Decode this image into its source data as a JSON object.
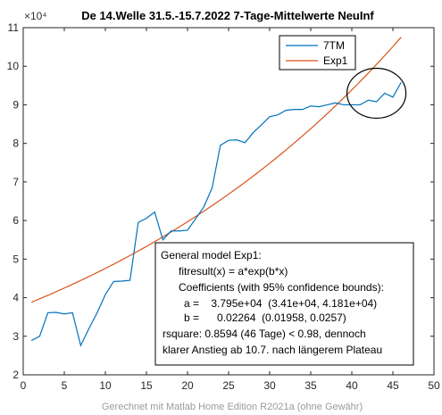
{
  "chart_data": {
    "type": "line",
    "title": "De 14.Welle 31.5.-15.7.2022 7-Tage-Mittelwerte NeuInf",
    "xlabel": "",
    "ylabel": "",
    "y_exponent_label": "×10⁴",
    "xlim": [
      0,
      50
    ],
    "ylim": [
      2,
      11
    ],
    "x_ticks": [
      0,
      5,
      10,
      15,
      20,
      25,
      30,
      35,
      40,
      45,
      50
    ],
    "y_ticks": [
      2,
      3,
      4,
      5,
      6,
      7,
      8,
      9,
      10,
      11
    ],
    "grid": false,
    "legend_position": "top-right",
    "series": [
      {
        "name": "7TM",
        "color": "#0072BD",
        "x": [
          1,
          2,
          3,
          4,
          5,
          6,
          7,
          8,
          9,
          10,
          11,
          12,
          13,
          14,
          15,
          16,
          17,
          18,
          19,
          20,
          21,
          22,
          23,
          24,
          25,
          26,
          27,
          28,
          29,
          30,
          31,
          32,
          33,
          34,
          35,
          36,
          37,
          38,
          39,
          40,
          41,
          42,
          43,
          44,
          45,
          46
        ],
        "y": [
          2.89,
          3.0,
          3.61,
          3.62,
          3.58,
          3.61,
          2.76,
          3.2,
          3.61,
          4.08,
          4.42,
          4.43,
          4.45,
          5.95,
          6.06,
          6.22,
          5.5,
          5.73,
          5.73,
          5.75,
          6.05,
          6.36,
          6.85,
          7.95,
          8.08,
          8.09,
          8.02,
          8.28,
          8.48,
          8.69,
          8.74,
          8.86,
          8.88,
          8.88,
          8.97,
          8.95,
          9.0,
          9.05,
          9.0,
          9.0,
          9.0,
          9.12,
          9.08,
          9.3,
          9.2,
          9.58
        ]
      },
      {
        "name": "Exp1",
        "color": "#D95319",
        "a": 37950,
        "b": 0.02264,
        "x_range": [
          1,
          46
        ]
      }
    ],
    "annotations": {
      "fit_box": [
        "General model Exp1:",
        "fitresult(x) = a*exp(b*x)",
        "Coefficients (with 95% confidence bounds):",
        "a =    3.795e+04  (3.41e+04, 4.181e+04)",
        "b =      0.02264  (0.01958, 0.0257)",
        "rsquare: 0.8594 (46 Tage) < 0.98, dennoch",
        "klarer Anstieg ab 10.7. nach längerem Plateau"
      ],
      "footer": "Gerechnet mit Matlab Home Edition R2021a (ohne Gewähr)",
      "highlight_ellipse": {
        "x_center": 43,
        "y_center": 9.3
      }
    }
  }
}
